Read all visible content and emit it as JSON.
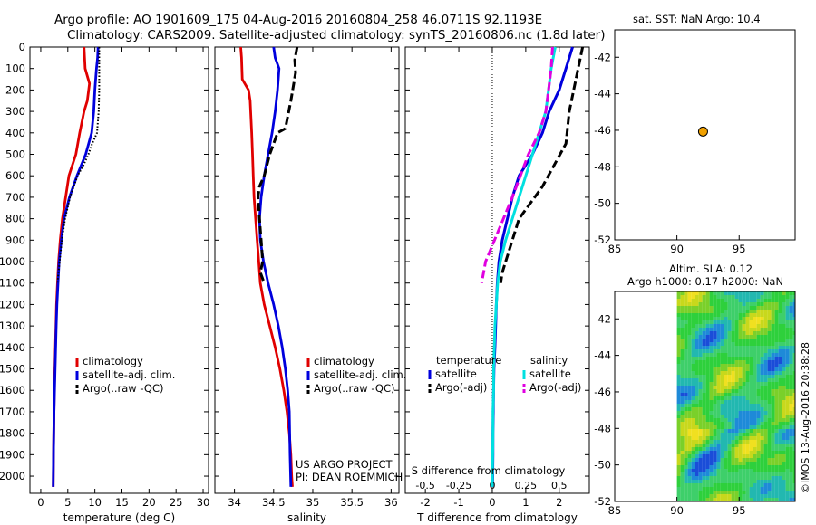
{
  "title_line1": "Argo profile: AO 1901609_175 04-Aug-2016 20160804_258 46.0711S 92.1193E",
  "title_line2": "Climatology: CARS2009. Satellite-adjusted climatology: synTS_20160806.nc (1.8d later)",
  "project_line1": "US ARGO PROJECT",
  "project_line2": "PI: DEAN ROEMMICH",
  "side_label": "©IMOS 13-Aug-2016 20:38:28",
  "colors": {
    "climatology": "#e00000",
    "satellite": "#0000dd",
    "argo": "#000000",
    "sat_salinity": "#00e0e0",
    "argo_salinity": "#e000e0",
    "marker": "#f0a000"
  },
  "chart_data": [
    {
      "type": "line",
      "id": "temperature",
      "xlabel": "temperature (deg C)",
      "ylabel": "",
      "xlim": [
        -2,
        31
      ],
      "ylim": [
        2080,
        0
      ],
      "xticks": [
        "0",
        "5",
        "10",
        "15",
        "20",
        "25",
        "30"
      ],
      "yticks": [
        "0",
        "100",
        "200",
        "300",
        "400",
        "500",
        "600",
        "700",
        "800",
        "900",
        "1000",
        "1100",
        "1200",
        "1300",
        "1400",
        "1500",
        "1600",
        "1700",
        "1800",
        "1900",
        "2000"
      ],
      "legend": [
        "climatology",
        "satellite-adj. clim.",
        "Argo(..raw -QC)"
      ],
      "series": [
        {
          "name": "climatology",
          "x": [
            8.0,
            8.1,
            8.2,
            9.0,
            8.6,
            8.0,
            7.2,
            6.5,
            5.2,
            4.6,
            4.0,
            3.6,
            3.3,
            3.1,
            2.9,
            2.8,
            2.7,
            2.6,
            2.5,
            2.45,
            2.4,
            2.35,
            2.3
          ],
          "y": [
            0,
            50,
            100,
            170,
            250,
            300,
            400,
            500,
            600,
            700,
            800,
            900,
            1000,
            1100,
            1200,
            1300,
            1400,
            1500,
            1600,
            1700,
            1800,
            1900,
            2050
          ]
        },
        {
          "name": "satellite-adj. clim.",
          "x": [
            10.6,
            10.5,
            10.3,
            10.0,
            9.8,
            9.4,
            8.3,
            6.7,
            5.3,
            4.3,
            3.8,
            3.4,
            3.2,
            3.0,
            2.85,
            2.75,
            2.65,
            2.55,
            2.45,
            2.4,
            2.35,
            2.3
          ],
          "y": [
            0,
            50,
            100,
            200,
            300,
            400,
            500,
            600,
            700,
            800,
            900,
            1000,
            1100,
            1200,
            1300,
            1400,
            1500,
            1600,
            1700,
            1800,
            1900,
            2050
          ]
        },
        {
          "name": "Argo(..raw -QC)",
          "x": [
            10.8,
            10.8,
            10.8,
            10.7,
            10.4,
            9.5,
            8.8,
            7.9,
            6.8,
            5.4,
            4.5,
            3.9,
            3.5,
            3.3,
            3.1
          ],
          "y": [
            0,
            100,
            200,
            300,
            400,
            450,
            500,
            550,
            600,
            700,
            800,
            900,
            1000,
            1050,
            1100
          ]
        }
      ]
    },
    {
      "type": "line",
      "id": "salinity",
      "xlabel": "salinity",
      "xlim": [
        33.75,
        36.1
      ],
      "ylim": [
        2080,
        0
      ],
      "xticks": [
        "34",
        "34.5",
        "35",
        "35.5",
        "36"
      ],
      "legend": [
        "climatology",
        "satellite-adj. clim.",
        "Argo(..raw -QC)"
      ],
      "series": [
        {
          "name": "climatology",
          "x": [
            34.08,
            34.09,
            34.1,
            34.18,
            34.2,
            34.22,
            34.23,
            34.24,
            34.25,
            34.27,
            34.29,
            34.31,
            34.33,
            34.38,
            34.45,
            34.52,
            34.58,
            34.63,
            34.67,
            34.7,
            34.72,
            34.73,
            34.74
          ],
          "y": [
            0,
            50,
            150,
            200,
            250,
            400,
            500,
            600,
            700,
            800,
            900,
            1000,
            1100,
            1200,
            1300,
            1400,
            1500,
            1600,
            1700,
            1800,
            1900,
            2000,
            2050
          ]
        },
        {
          "name": "satellite-adj. clim.",
          "x": [
            34.5,
            34.52,
            34.57,
            34.55,
            34.52,
            34.48,
            34.43,
            34.38,
            34.34,
            34.32,
            34.33,
            34.37,
            34.43,
            34.5,
            34.56,
            34.61,
            34.65,
            34.68,
            34.7,
            34.71,
            34.72
          ],
          "y": [
            0,
            50,
            100,
            200,
            300,
            400,
            500,
            600,
            700,
            800,
            900,
            1000,
            1100,
            1200,
            1300,
            1400,
            1500,
            1600,
            1700,
            1900,
            2050
          ]
        },
        {
          "name": "Argo(..raw -QC)",
          "x": [
            34.8,
            34.77,
            34.78,
            34.72,
            34.65,
            34.55,
            34.5,
            34.45,
            34.38,
            34.32,
            34.3,
            34.32,
            34.34,
            34.36,
            34.33,
            34.38
          ],
          "y": [
            0,
            60,
            120,
            250,
            380,
            400,
            450,
            500,
            600,
            650,
            700,
            800,
            900,
            1000,
            1050,
            1100
          ]
        }
      ]
    },
    {
      "type": "line",
      "id": "difference",
      "xlabel": "T difference from climatology",
      "xlabel_top": "S difference from climatology",
      "xlim": [
        -2.6,
        2.9
      ],
      "ylim": [
        2080,
        0
      ],
      "xticks": [
        "-2",
        "-1",
        "0",
        "1",
        "2"
      ],
      "xticks_top": [
        "-0.5",
        "-0.25",
        "0",
        "0.25",
        "0.5"
      ],
      "legend_headers": [
        "temperature",
        "salinity"
      ],
      "legend": [
        "satellite",
        "Argo(-adj)",
        "satellite",
        "Argo(-adj)"
      ],
      "series": [
        {
          "name": "satellite",
          "quantity": "temperature",
          "x": [
            2.4,
            2.2,
            2.0,
            1.7,
            1.5,
            1.2,
            0.8,
            0.6,
            0.45,
            0.3,
            0.2,
            0.15,
            0.12,
            0.1,
            0.08,
            0.05,
            0.04,
            0.03,
            0.02,
            0.02,
            0.01
          ],
          "y": [
            0,
            100,
            200,
            300,
            400,
            500,
            600,
            700,
            800,
            900,
            1000,
            1100,
            1200,
            1300,
            1400,
            1500,
            1600,
            1700,
            1800,
            1900,
            2050
          ]
        },
        {
          "name": "Argo(-adj)",
          "quantity": "temperature",
          "x": [
            2.7,
            2.5,
            2.3,
            2.2,
            1.5,
            0.8,
            0.5,
            0.3,
            0.25
          ],
          "y": [
            0,
            150,
            300,
            450,
            650,
            800,
            950,
            1050,
            1100
          ]
        },
        {
          "name": "satellite",
          "quantity": "salinity",
          "x": [
            0.47,
            0.44,
            0.42,
            0.4,
            0.35,
            0.3,
            0.25,
            0.2,
            0.15,
            0.1,
            0.06,
            0.04,
            0.03,
            0.02,
            0.015,
            0.01,
            0.01,
            0.005,
            0.005,
            0.0
          ],
          "y": [
            0,
            100,
            200,
            300,
            400,
            500,
            600,
            700,
            800,
            900,
            1000,
            1100,
            1200,
            1300,
            1400,
            1500,
            1600,
            1700,
            1800,
            2050
          ]
        },
        {
          "name": "Argo(-adj)",
          "quantity": "salinity",
          "x": [
            0.45,
            0.44,
            0.42,
            0.4,
            0.35,
            0.27,
            0.15,
            0.05,
            -0.05,
            -0.08
          ],
          "y": [
            0,
            100,
            200,
            300,
            400,
            500,
            700,
            850,
            1000,
            1100
          ]
        }
      ]
    },
    {
      "type": "scatter",
      "id": "sst-map",
      "title": "sat. SST: NaN Argo: 10.4",
      "xlim": [
        85,
        99.5
      ],
      "ylim": [
        -52,
        -40.5
      ],
      "xticks": [
        "85",
        "90",
        "95"
      ],
      "yticks": [
        "-42",
        "-44",
        "-46",
        "-48",
        "-50",
        "-52"
      ],
      "points": [
        {
          "x": 92.1,
          "y": -46.07
        }
      ]
    },
    {
      "type": "heatmap",
      "id": "sla-map",
      "title": "Altim. SLA: 0.12",
      "subtitle": "Argo h1000: 0.17 h2000: NaN",
      "xlim": [
        85,
        99.5
      ],
      "ylim": [
        -52,
        -40.5
      ],
      "xticks": [
        "85",
        "90",
        "95"
      ],
      "yticks": [
        "-42",
        "-44",
        "-46",
        "-48",
        "-50",
        "-52"
      ],
      "data_extent_x": [
        90,
        99.5
      ]
    }
  ]
}
